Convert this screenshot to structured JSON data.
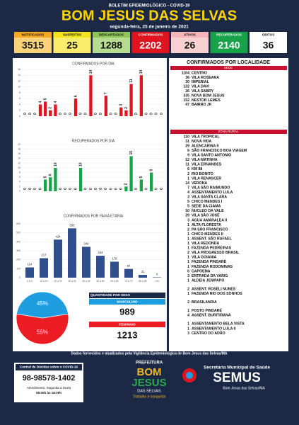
{
  "header": {
    "subtitle": "BOLETIM EPIDEMIOLÓGICO - COVID-19",
    "title": "BOM JESUS DAS SELVAS",
    "date": "segunda-feira, 25 de janeiro de 2021"
  },
  "stats": [
    {
      "label": "NOTIFICADOS",
      "value": 3515,
      "color": "#f7a823",
      "value_bg": "#fbd27a",
      "text_color": "#111"
    },
    {
      "label": "SUSPEITOS",
      "value": 25,
      "color": "#f4e21c",
      "value_bg": "#f8ec6a",
      "text_color": "#111"
    },
    {
      "label": "DESCARTADOS",
      "value": 1288,
      "color": "#8fc65a",
      "value_bg": "#b7dc8f",
      "text_color": "#111"
    },
    {
      "label": "CONFIRMADOS",
      "value": 2202,
      "color": "#e0141e",
      "value_bg": "#e0141e",
      "text_color": "#fff"
    },
    {
      "label": "ATIVOS",
      "value": 26,
      "color": "#f4b6b8",
      "value_bg": "#f9d0d1",
      "text_color": "#111"
    },
    {
      "label": "RECUPERADOS",
      "value": 2140,
      "color": "#18a34a",
      "value_bg": "#18a34a",
      "text_color": "#fff"
    },
    {
      "label": "ÓBITOS",
      "value": 36,
      "color": "#ffffff",
      "value_bg": "#ffffff",
      "text_color": "#111"
    }
  ],
  "chart_data": [
    {
      "type": "bar",
      "title": "CONFIRMADOS POR DIA",
      "values": [
        0,
        0,
        0,
        4,
        5,
        2,
        4,
        0,
        0,
        0,
        6,
        0,
        0,
        14,
        0,
        0,
        7,
        0,
        0,
        3,
        2,
        11,
        0,
        14,
        0,
        0,
        0,
        0
      ],
      "color": "#e0141e",
      "ylim": [
        0,
        16
      ],
      "yticks": [
        0,
        2,
        4,
        6,
        8,
        10,
        12,
        14,
        16
      ],
      "grid": true
    },
    {
      "type": "bar",
      "title": "RECUPERADOS POR DIA",
      "values": [
        0,
        0,
        0,
        0,
        5,
        6,
        10,
        0,
        0,
        0,
        0,
        10,
        0,
        0,
        0,
        0,
        0,
        0,
        0,
        0,
        2,
        15,
        0,
        5,
        0,
        8,
        0,
        0
      ],
      "color": "#18a34a",
      "ylim": [
        0,
        20
      ],
      "yticks": [
        0,
        2,
        4,
        6,
        8,
        10,
        12,
        14,
        16,
        18,
        20
      ],
      "grid": true
    },
    {
      "type": "bar",
      "title": "CONFIRMADOS POR FAIXA ETÁRIA",
      "categories": [
        "0 a 9",
        "10 a 19",
        "20 a 29",
        "30 a 39",
        "40 a 49",
        "50 a 59",
        "60 a 69",
        "70 a 79",
        "80 a 89",
        ">90"
      ],
      "values": [
        114,
        217,
        424,
        550,
        344,
        244,
        178,
        97,
        31,
        4
      ],
      "color": "#2e4f8c",
      "ylim": [
        0,
        600
      ],
      "yticks": [
        0,
        100,
        200,
        300,
        400,
        500,
        600
      ],
      "grid": true
    },
    {
      "type": "pie",
      "values": [
        55,
        45
      ],
      "value_labels": [
        "55%",
        "45%"
      ],
      "colors": [
        "#ee1c25",
        "#1e9ee0"
      ]
    }
  ],
  "sex": {
    "title": "QUANTIDADE POR SEXO",
    "male_label": "MASCULINO",
    "male": 989,
    "male_color": "#1e9ee0",
    "female_label": "FEMININO",
    "female": 1213,
    "female_color": "#ee1c25"
  },
  "localities": {
    "title": "CONFIRMADOS POR LOCALIDADE",
    "sede_title": "SEDE",
    "sede": [
      [
        1104,
        "CENTRO"
      ],
      [
        36,
        "VILA ROSEANA"
      ],
      [
        30,
        "IMPERIAL"
      ],
      [
        132,
        "VILA DAVI"
      ],
      [
        26,
        "VILA SABRY"
      ],
      [
        335,
        "NOVA BOM JESUS"
      ],
      [
        152,
        "NESTOR LEMES"
      ],
      [
        47,
        "BAIRRO JK"
      ]
    ],
    "rural_title": "ZONA RURAL",
    "rural": [
      [
        [
          110,
          "VILA TROPICAL"
        ],
        [
          31,
          "NOVA VIDA"
        ],
        [
          29,
          "ALENCARINA II"
        ],
        [
          6,
          "SÃO FRANCISCO BOA VIAGEM"
        ],
        [
          9,
          "VILA SANTO ANTONIO"
        ],
        [
          12,
          "VILA MATINHA"
        ],
        [
          11,
          "VILA ERNANDES"
        ],
        [
          6,
          "KM 88"
        ],
        [
          2,
          "RIO BONITO"
        ],
        [
          1,
          "VILA RENASCER"
        ],
        [
          14,
          "VERONA"
        ],
        [
          7,
          "VILA SÃO RAIMUNDO"
        ],
        [
          4,
          "ASSENTAMENTO LULA"
        ],
        [
          3,
          "VILA SANTA CLARA"
        ],
        [
          5,
          "CHICO MENDES I"
        ],
        [
          5,
          "SEDE DA CIAMA"
        ],
        [
          10,
          "NUCLEO DA VALE"
        ],
        [
          29,
          "VILA SÃO JOSÉ"
        ],
        [
          3,
          "AGUA AMARALEA II"
        ],
        [
          1,
          "ALTA FLORESTA"
        ],
        [
          2,
          "PA SÃO FRANCISCO"
        ],
        [
          1,
          "CHICO MENDES II"
        ],
        [
          1,
          "ASSENT. SÃO RAFAEL"
        ],
        [
          1,
          "VILA REDONDA"
        ],
        [
          1,
          "FAZENDA PEDREIRAS"
        ],
        [
          2,
          "VILA PROGRESSO BRASIL"
        ],
        [
          1,
          "VILA GOIANIA"
        ],
        [
          1,
          "FAZENDA PINDARÉ"
        ],
        [
          1,
          "FAZENDA RODOMINAS"
        ],
        [
          6,
          "CAPOEMA"
        ],
        [
          3,
          "ENTRADA DA VARIG"
        ],
        [
          1,
          "ALDEIA JENIPAPO"
        ]
      ],
      [
        [
          2,
          "ASSENT. ROSELI NUNES"
        ],
        [
          1,
          "FAZENDA RIO DOS SONHOS"
        ]
      ],
      [
        [
          2,
          "BRASILANDIA"
        ]
      ],
      [
        [
          1,
          "POSTO PINDARÉ"
        ],
        [
          4,
          "ASSENT. BURITIRANA"
        ]
      ],
      [
        [
          1,
          "ASSENTAMENTO BELA VISTA"
        ],
        [
          1,
          "ASSENTAMENTO LULA II"
        ],
        [
          3,
          "CENTRO DO ADÃO"
        ]
      ]
    ]
  },
  "footer": {
    "source": "Dados fornecidos e atualizados pela Vigilância Epidemiológica de Bom Jesus das Selvas/MA",
    "help_title": "Central de Dúvidas sobre o COVID-19",
    "phone": "98-98578-1402",
    "hours_1": "Atendimento: Segunda a Sexta",
    "hours_2": "08:00h às 18:00h",
    "pref": "PREFEITURA",
    "logo_1": "BOM",
    "logo_2": "JESUS",
    "logo_3": "DAS SELVAS",
    "slogan": "Trabalho e conquista",
    "semus_1": "Secretaria Municipal de Saúde",
    "semus_2": "SEMUS",
    "semus_3": "Bom Jesus das Selvas/MA"
  }
}
